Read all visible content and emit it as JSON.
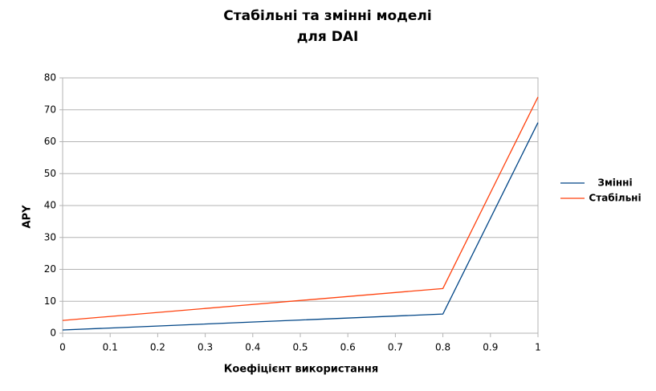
{
  "chart_data": {
    "type": "line",
    "title": [
      "Стабільні та змінні моделі",
      "для DAI"
    ],
    "x_label": "Коефіцієнт використання",
    "y_label": "APY",
    "x": [
      0,
      0.8,
      1
    ],
    "series": [
      {
        "name": "Змінні",
        "color": "#004586",
        "values": [
          1,
          6,
          66
        ]
      },
      {
        "name": "Стабільні",
        "color": "#ff420e",
        "values": [
          4,
          14,
          74
        ]
      }
    ],
    "xlim": [
      0,
      1
    ],
    "xticks": [
      0,
      0.1,
      0.2,
      0.3,
      0.4,
      0.5,
      0.6,
      0.7,
      0.8,
      0.9,
      1
    ],
    "ylim": [
      0,
      80
    ],
    "yticks": [
      0,
      10,
      20,
      30,
      40,
      50,
      60,
      70,
      80
    ],
    "grid": true,
    "legend": "right"
  }
}
